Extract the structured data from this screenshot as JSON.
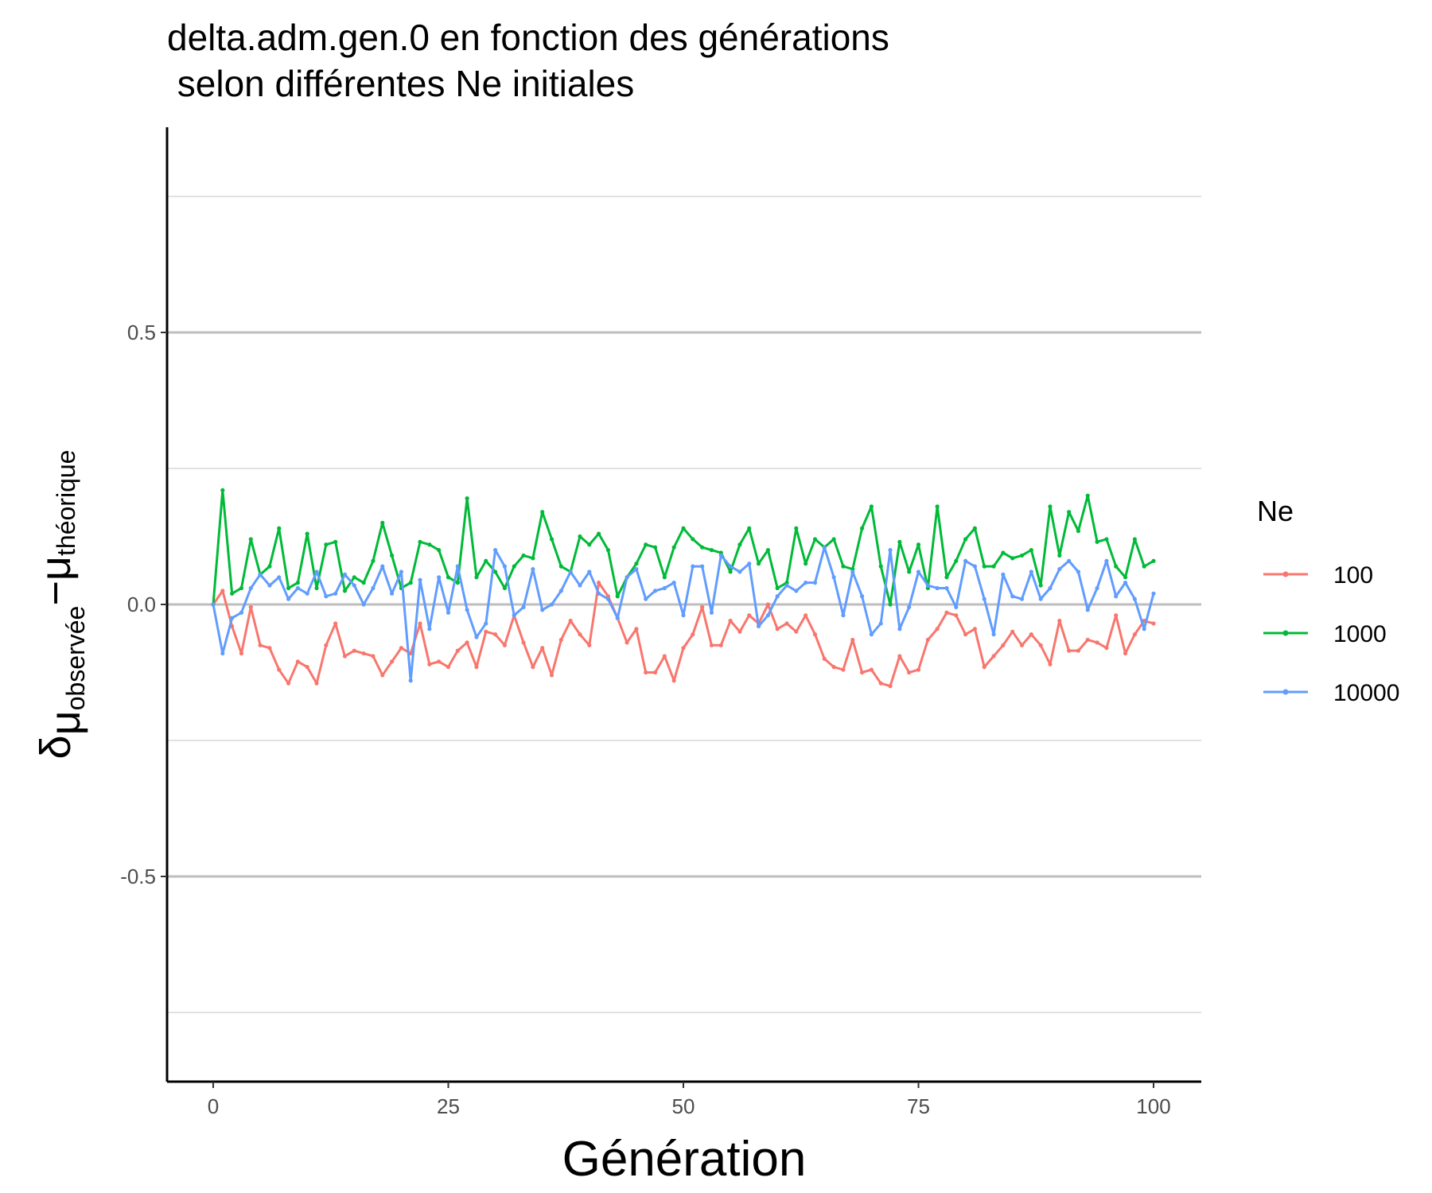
{
  "chart_data": {
    "type": "line",
    "title": "delta.adm.gen.0 en fonction des générations",
    "subtitle": " selon différentes Ne initiales",
    "xlabel": "Génération",
    "ylabel": {
      "symbol": "δ",
      "sub1": "μ",
      "sub2": "observée",
      "minus": "−",
      "sub3": "μ",
      "sub4": "théorique"
    },
    "xlim": [
      -5,
      105
    ],
    "ylim": [
      -0.88,
      0.88
    ],
    "xticks": [
      0,
      25,
      50,
      75,
      100
    ],
    "xtick_labels": [
      "0",
      "25",
      "50",
      "75",
      "100"
    ],
    "yticks": [
      -0.5,
      0.0,
      0.5
    ],
    "ytick_labels": [
      "-0.5",
      "0.0",
      "0.5"
    ],
    "grid": true,
    "legend": {
      "title": "Ne",
      "position": "right"
    },
    "x": [
      0,
      1,
      2,
      3,
      4,
      5,
      6,
      7,
      8,
      9,
      10,
      11,
      12,
      13,
      14,
      15,
      16,
      17,
      18,
      19,
      20,
      21,
      22,
      23,
      24,
      25,
      26,
      27,
      28,
      29,
      30,
      31,
      32,
      33,
      34,
      35,
      36,
      37,
      38,
      39,
      40,
      41,
      42,
      43,
      44,
      45,
      46,
      47,
      48,
      49,
      50,
      51,
      52,
      53,
      54,
      55,
      56,
      57,
      58,
      59,
      60,
      61,
      62,
      63,
      64,
      65,
      66,
      67,
      68,
      69,
      70,
      71,
      72,
      73,
      74,
      75,
      76,
      77,
      78,
      79,
      80,
      81,
      82,
      83,
      84,
      85,
      86,
      87,
      88,
      89,
      90,
      91,
      92,
      93,
      94,
      95,
      96,
      97,
      98,
      99,
      100
    ],
    "series": [
      {
        "name": "100",
        "color": "#F8766D",
        "values": [
          0.0,
          0.025,
          -0.04,
          -0.09,
          -0.005,
          -0.075,
          -0.08,
          -0.12,
          -0.145,
          -0.105,
          -0.115,
          -0.145,
          -0.075,
          -0.035,
          -0.095,
          -0.085,
          -0.09,
          -0.095,
          -0.13,
          -0.105,
          -0.08,
          -0.09,
          -0.035,
          -0.11,
          -0.105,
          -0.115,
          -0.085,
          -0.07,
          -0.115,
          -0.05,
          -0.055,
          -0.075,
          -0.02,
          -0.07,
          -0.115,
          -0.08,
          -0.13,
          -0.065,
          -0.03,
          -0.055,
          -0.075,
          0.04,
          0.015,
          -0.025,
          -0.07,
          -0.045,
          -0.125,
          -0.125,
          -0.095,
          -0.14,
          -0.08,
          -0.055,
          -0.005,
          -0.075,
          -0.075,
          -0.03,
          -0.05,
          -0.02,
          -0.035,
          0.0,
          -0.045,
          -0.035,
          -0.05,
          -0.02,
          -0.055,
          -0.1,
          -0.115,
          -0.12,
          -0.065,
          -0.125,
          -0.12,
          -0.145,
          -0.15,
          -0.095,
          -0.125,
          -0.12,
          -0.065,
          -0.045,
          -0.015,
          -0.02,
          -0.055,
          -0.045,
          -0.115,
          -0.095,
          -0.075,
          -0.05,
          -0.075,
          -0.055,
          -0.075,
          -0.11,
          -0.03,
          -0.085,
          -0.085,
          -0.065,
          -0.07,
          -0.08,
          -0.02,
          -0.09,
          -0.055,
          -0.03,
          -0.035
        ]
      },
      {
        "name": "1000",
        "color": "#00BA38",
        "values": [
          0.0,
          0.21,
          0.02,
          0.03,
          0.12,
          0.055,
          0.07,
          0.14,
          0.03,
          0.04,
          0.13,
          0.03,
          0.11,
          0.115,
          0.025,
          0.05,
          0.04,
          0.08,
          0.15,
          0.09,
          0.03,
          0.04,
          0.115,
          0.11,
          0.1,
          0.05,
          0.04,
          0.195,
          0.05,
          0.08,
          0.06,
          0.03,
          0.07,
          0.09,
          0.085,
          0.17,
          0.12,
          0.07,
          0.06,
          0.125,
          0.11,
          0.13,
          0.1,
          0.015,
          0.05,
          0.075,
          0.11,
          0.105,
          0.05,
          0.105,
          0.14,
          0.12,
          0.105,
          0.1,
          0.095,
          0.06,
          0.11,
          0.14,
          0.075,
          0.1,
          0.03,
          0.04,
          0.14,
          0.075,
          0.12,
          0.105,
          0.12,
          0.07,
          0.065,
          0.14,
          0.18,
          0.07,
          0.0,
          0.115,
          0.06,
          0.11,
          0.03,
          0.18,
          0.05,
          0.08,
          0.12,
          0.14,
          0.07,
          0.07,
          0.095,
          0.085,
          0.09,
          0.1,
          0.035,
          0.18,
          0.09,
          0.17,
          0.135,
          0.2,
          0.115,
          0.12,
          0.07,
          0.05,
          0.12,
          0.07,
          0.08
        ]
      },
      {
        "name": "10000",
        "color": "#619CFF",
        "values": [
          0.0,
          -0.09,
          -0.025,
          -0.015,
          0.03,
          0.055,
          0.035,
          0.05,
          0.01,
          0.03,
          0.02,
          0.06,
          0.015,
          0.02,
          0.055,
          0.035,
          0.0,
          0.03,
          0.07,
          0.02,
          0.06,
          -0.14,
          0.045,
          -0.045,
          0.05,
          -0.015,
          0.07,
          -0.01,
          -0.06,
          -0.035,
          0.1,
          0.07,
          -0.02,
          -0.005,
          0.065,
          -0.01,
          0.0,
          0.025,
          0.06,
          0.035,
          0.06,
          0.02,
          0.01,
          -0.025,
          0.05,
          0.065,
          0.01,
          0.025,
          0.03,
          0.04,
          -0.02,
          0.07,
          0.07,
          -0.015,
          0.09,
          0.07,
          0.06,
          0.075,
          -0.04,
          -0.02,
          0.015,
          0.035,
          0.025,
          0.04,
          0.04,
          0.105,
          0.05,
          -0.02,
          0.06,
          0.015,
          -0.055,
          -0.035,
          0.1,
          -0.045,
          -0.005,
          0.06,
          0.035,
          0.03,
          0.03,
          -0.005,
          0.08,
          0.07,
          0.01,
          -0.055,
          0.055,
          0.015,
          0.01,
          0.06,
          0.01,
          0.03,
          0.065,
          0.08,
          0.06,
          -0.01,
          0.03,
          0.08,
          0.015,
          0.04,
          0.01,
          -0.045,
          0.02
        ]
      }
    ]
  }
}
